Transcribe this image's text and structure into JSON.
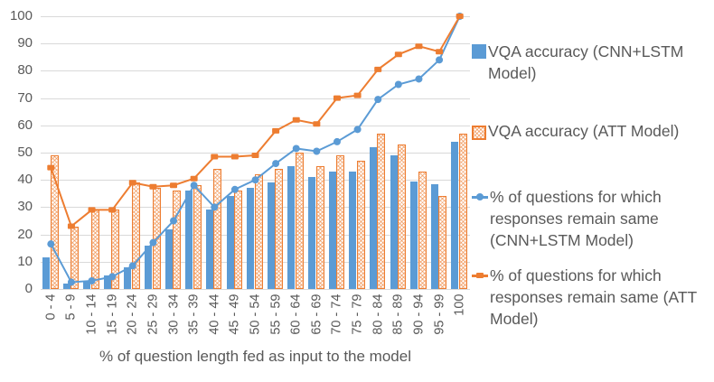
{
  "colors": {
    "blue": "#5B9BD5",
    "orange": "#ED7D31",
    "text": "#595959",
    "grid": "#D9D9D9"
  },
  "chart_data": {
    "type": "bar+line combo",
    "categories": [
      "0 - 4",
      "5 - 9",
      "10 - 14",
      "15 - 19",
      "20 - 24",
      "25 - 29",
      "30 - 34",
      "35 - 39",
      "40 - 44",
      "45 - 49",
      "50 - 54",
      "55 - 59",
      "60 - 64",
      "65 - 69",
      "70 - 74",
      "75 - 79",
      "80 - 84",
      "85 - 89",
      "90 - 94",
      "95 - 99",
      "100"
    ],
    "series": [
      {
        "name": "VQA accuracy (CNN+LSTM Model)",
        "type": "bar",
        "fill": "solid",
        "color": "#5B9BD5",
        "values": [
          11.5,
          2,
          3,
          5,
          8,
          16,
          22,
          36,
          29,
          34,
          37,
          39,
          45,
          41,
          43,
          43,
          52,
          49,
          39.5,
          38.5,
          54
        ]
      },
      {
        "name": "VQA accuracy (ATT Model)",
        "type": "bar",
        "fill": "hatch",
        "color": "#ED7D31",
        "values": [
          49,
          23,
          29,
          29,
          39,
          37,
          36,
          38,
          44,
          36,
          42,
          44,
          50,
          45,
          49,
          47,
          57,
          53,
          43,
          34,
          57
        ]
      },
      {
        "name": "% of questions for which responses remain same (CNN+LSTM Model)",
        "type": "line",
        "marker": "circle",
        "color": "#5B9BD5",
        "values": [
          16.5,
          2.5,
          3,
          4.5,
          8.5,
          17,
          25,
          38,
          30,
          36.5,
          40,
          46,
          51.5,
          50.5,
          54,
          58.5,
          69.5,
          75,
          77,
          84,
          100
        ]
      },
      {
        "name": "% of questions for which responses remain same (ATT Model)",
        "type": "line",
        "marker": "square",
        "color": "#ED7D31",
        "values": [
          44.5,
          23,
          29,
          29,
          39,
          37.5,
          38,
          40.5,
          48.5,
          48.5,
          49,
          58,
          62,
          60.5,
          70,
          71,
          80.5,
          86,
          89,
          87,
          100
        ]
      }
    ],
    "xlabel": "% of question length fed as input to the model",
    "ylabel": "",
    "ylim": [
      0,
      100
    ],
    "y_ticks": [
      0,
      10,
      20,
      30,
      40,
      50,
      60,
      70,
      80,
      90,
      100
    ],
    "grid": "horizontal",
    "legend_position": "right"
  }
}
